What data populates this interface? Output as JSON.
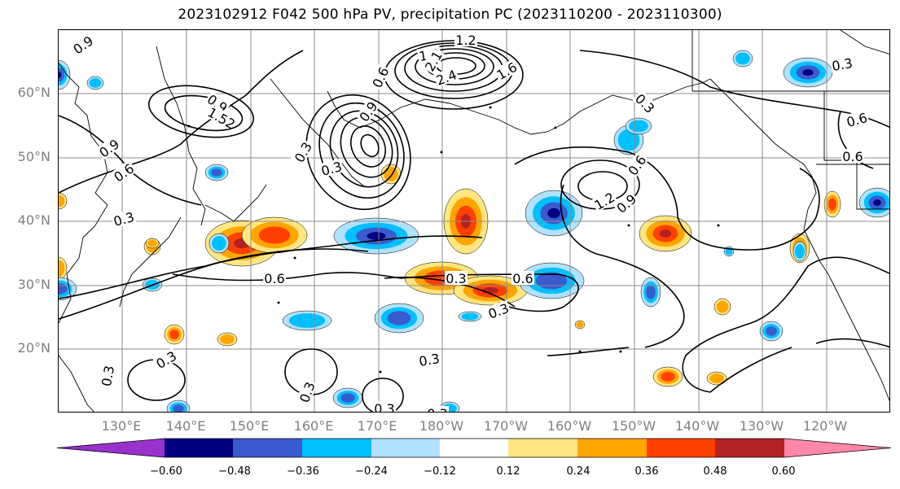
{
  "title": "2023102912 F042 500 hPa PV, precipitation PC (2023110200 - 2023110300)",
  "map": {
    "lat_labels": [
      "60°N",
      "50°N",
      "40°N",
      "30°N",
      "20°N"
    ],
    "lon_labels": [
      "130°E",
      "140°E",
      "150°E",
      "160°E",
      "170°E",
      "180°W",
      "170°W",
      "160°W",
      "150°W",
      "140°W",
      "130°W",
      "120°W"
    ],
    "contour_labels": [
      "0.9",
      "0.9",
      "1.2",
      "1.2",
      "2.1",
      "2.4",
      "1.6",
      "0.3",
      "0.9",
      "1.52",
      "0.6",
      "0.3",
      "0.9",
      "0.6",
      "0.3",
      "0.6",
      "0.6",
      "0.3",
      "0.3",
      "0.3",
      "0.3",
      "0.3",
      "0.3",
      "0.3",
      "0.9",
      "1.2",
      "0.6",
      "0.3",
      "0.6",
      "0.3",
      "0.6",
      "0.3"
    ],
    "colors": {
      "land_outline": "#000000",
      "grid": "#8c8c8c",
      "contour": "#000000"
    }
  },
  "colorbar": {
    "ticks": [
      "−0.60",
      "−0.48",
      "−0.36",
      "−0.24",
      "−0.12",
      "0.12",
      "0.24",
      "0.36",
      "0.48",
      "0.60"
    ],
    "colors": [
      "#9932cc",
      "#000080",
      "#3a5bcd",
      "#00bfff",
      "#b0e2ff",
      "#ffffff",
      "#ffe680",
      "#ffa500",
      "#ff4000",
      "#b22222",
      "#ff88aa"
    ]
  },
  "chart_data": {
    "type": "map",
    "variable": "500 hPa PV, precipitation PC",
    "init": "2023102912",
    "forecast_hour": "F042",
    "valid_period": "2023110200 - 2023110300",
    "lat_range": [
      10,
      70
    ],
    "lon_range": [
      120,
      250
    ],
    "levels": [
      -0.6,
      -0.48,
      -0.36,
      -0.24,
      -0.12,
      0.12,
      0.24,
      0.36,
      0.48,
      0.6
    ]
  }
}
